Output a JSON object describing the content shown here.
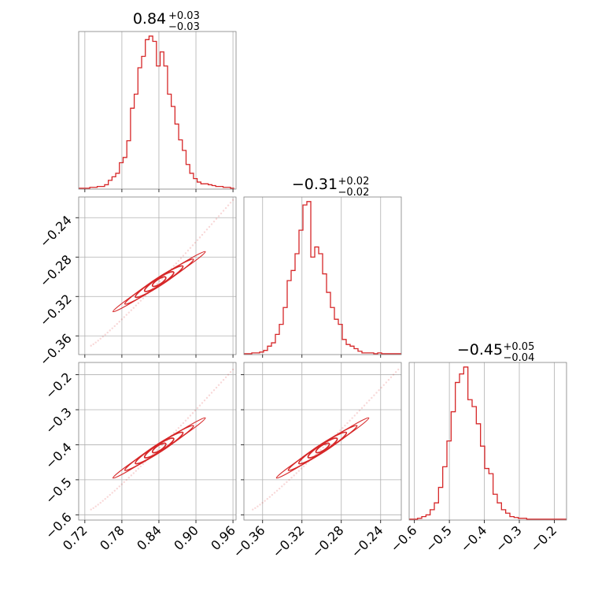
{
  "chart_data": {
    "type": "corner",
    "color": "#d62728",
    "grid": true,
    "parameters": [
      {
        "title": {
          "value": "0.84",
          "plus": "+0.03",
          "minus": "−0.03"
        },
        "range": [
          0.71,
          0.965
        ],
        "ticks": [
          0.72,
          0.78,
          0.84,
          0.9,
          0.96
        ],
        "tick_labels": [
          "0.72",
          "0.78",
          "0.84",
          "0.90",
          "0.96"
        ],
        "hist_bins": [
          0.71,
          0.716,
          0.722,
          0.728,
          0.734,
          0.74,
          0.746,
          0.752,
          0.758,
          0.764,
          0.77,
          0.776,
          0.782,
          0.788,
          0.794,
          0.8,
          0.806,
          0.812,
          0.818,
          0.824,
          0.83,
          0.836,
          0.842,
          0.848,
          0.854,
          0.86,
          0.866,
          0.872,
          0.878,
          0.884,
          0.89,
          0.896,
          0.902,
          0.908,
          0.914,
          0.92,
          0.926,
          0.932,
          0.938,
          0.944,
          0.95,
          0.956,
          0.962
        ],
        "hist_counts": [
          1,
          1,
          1,
          2,
          2,
          3,
          3,
          5,
          10,
          14,
          18,
          30,
          36,
          55,
          92,
          108,
          138,
          151,
          170,
          174,
          168,
          140,
          156,
          140,
          108,
          94,
          74,
          56,
          44,
          28,
          18,
          12,
          8,
          6,
          6,
          5,
          4,
          3,
          3,
          2,
          2,
          1
        ]
      },
      {
        "title": {
          "value": "−0.31",
          "plus": "+0.02",
          "minus": "−0.02"
        },
        "range": [
          -0.379,
          -0.219
        ],
        "ticks": [
          -0.36,
          -0.32,
          -0.28,
          -0.24
        ],
        "tick_labels": [
          "−0.36",
          "−0.32",
          "−0.28",
          "−0.24"
        ],
        "hist_bins": [
          -0.379,
          -0.375,
          -0.371,
          -0.367,
          -0.363,
          -0.359,
          -0.355,
          -0.351,
          -0.347,
          -0.343,
          -0.339,
          -0.335,
          -0.331,
          -0.327,
          -0.323,
          -0.319,
          -0.315,
          -0.311,
          -0.307,
          -0.303,
          -0.299,
          -0.295,
          -0.291,
          -0.287,
          -0.283,
          -0.279,
          -0.275,
          -0.271,
          -0.267,
          -0.263,
          -0.259,
          -0.255,
          -0.251,
          -0.247,
          -0.243,
          -0.239,
          -0.235,
          -0.231,
          -0.227,
          -0.223,
          -0.219
        ],
        "hist_counts": [
          1,
          1,
          2,
          2,
          3,
          5,
          10,
          14,
          24,
          36,
          56,
          88,
          100,
          120,
          148,
          178,
          182,
          116,
          128,
          120,
          96,
          74,
          56,
          42,
          36,
          18,
          12,
          10,
          7,
          4,
          2,
          2,
          2,
          1,
          2,
          1,
          1,
          1,
          1,
          1
        ]
      },
      {
        "title": {
          "value": "−0.45",
          "plus": "+0.05",
          "minus": "−0.04"
        },
        "range": [
          -0.615,
          -0.165
        ],
        "ticks": [
          -0.6,
          -0.5,
          -0.4,
          -0.3,
          -0.2
        ],
        "tick_labels": [
          "−0.6",
          "−0.5",
          "−0.4",
          "−0.3",
          "−0.2"
        ],
        "hist_bins": [
          -0.615,
          -0.603,
          -0.591,
          -0.579,
          -0.567,
          -0.555,
          -0.543,
          -0.531,
          -0.519,
          -0.507,
          -0.495,
          -0.483,
          -0.471,
          -0.459,
          -0.447,
          -0.435,
          -0.423,
          -0.411,
          -0.399,
          -0.387,
          -0.375,
          -0.363,
          -0.351,
          -0.339,
          -0.327,
          -0.315,
          -0.303,
          -0.291,
          -0.279,
          -0.267,
          -0.255,
          -0.243,
          -0.231,
          -0.219,
          -0.207,
          -0.195,
          -0.183,
          -0.171,
          -0.165
        ],
        "hist_counts": [
          1,
          1,
          2,
          4,
          6,
          12,
          20,
          38,
          62,
          92,
          126,
          160,
          170,
          178,
          140,
          132,
          112,
          86,
          60,
          54,
          30,
          20,
          12,
          8,
          4,
          3,
          2,
          2,
          1,
          1,
          1,
          1,
          1,
          1,
          1,
          1,
          1,
          1
        ]
      }
    ],
    "scatter": {
      "p2_vs_p1": {
        "x_param": 0,
        "y_param": 1,
        "x_range": [
          0.73,
          0.96
        ],
        "y_range": [
          -0.37,
          -0.222
        ]
      },
      "p3_vs_p1": {
        "x_param": 0,
        "y_param": 2,
        "x_range": [
          0.73,
          0.96
        ],
        "y_range": [
          -0.585,
          -0.185
        ]
      },
      "p3_vs_p2": {
        "x_param": 1,
        "y_param": 2,
        "x_range": [
          -0.37,
          -0.222
        ],
        "y_range": [
          -0.585,
          -0.185
        ]
      }
    }
  }
}
